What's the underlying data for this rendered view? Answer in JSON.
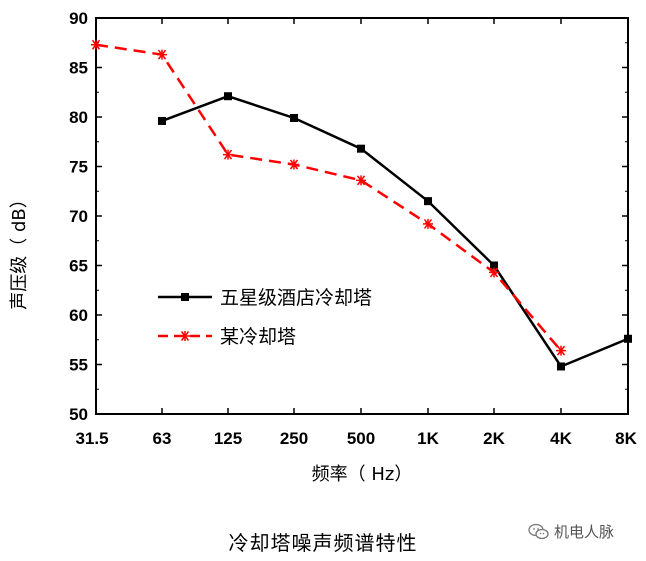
{
  "chart_data": {
    "type": "line",
    "categories": [
      "31.5",
      "63",
      "125",
      "250",
      "500",
      "1K",
      "2K",
      "4K",
      "8K"
    ],
    "series": [
      {
        "name": "五星级酒店冷却塔",
        "color": "#000000",
        "marker": "square",
        "line_style": "solid",
        "values": [
          null,
          79.6,
          82.1,
          79.9,
          76.8,
          71.5,
          65.0,
          54.8,
          57.6
        ]
      },
      {
        "name": "某冷却塔",
        "color": "#ff0000",
        "marker": "asterisk",
        "line_style": "dashed",
        "values": [
          87.3,
          86.3,
          76.2,
          75.2,
          73.6,
          69.2,
          64.3,
          56.4,
          null
        ]
      }
    ],
    "ylim": [
      50,
      90
    ],
    "yticks": [
      "50",
      "55",
      "60",
      "65",
      "70",
      "75",
      "80",
      "85",
      "90"
    ],
    "xlabel": "频率（ Hz）",
    "ylabel": "声压级（ dB）",
    "legend_position": "lower-left",
    "grid": false
  },
  "caption": "冷却塔噪声频谱特性",
  "watermark": {
    "text": "机电人脉",
    "icon": "wechat-icon"
  }
}
